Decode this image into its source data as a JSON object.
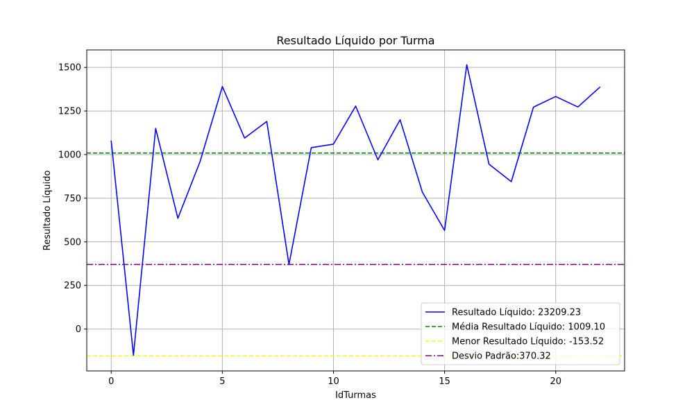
{
  "chart_data": {
    "type": "line",
    "title": "Resultado Líquido por Turma",
    "xlabel": "IdTurmas",
    "ylabel": "Resultado Líquido",
    "xlim": [
      -1.1,
      23.1
    ],
    "ylim": [
      -240,
      1600
    ],
    "xticks": [
      0,
      5,
      10,
      15,
      20
    ],
    "yticks": [
      0,
      250,
      500,
      750,
      1000,
      1250,
      1500
    ],
    "grid": true,
    "legend_position": "lower-right",
    "series": [
      {
        "name": "Resultado Líquido: 23209.23",
        "color": "#0000ff",
        "style": "solid",
        "x": [
          0,
          1,
          2,
          3,
          4,
          5,
          6,
          7,
          8,
          9,
          10,
          11,
          12,
          13,
          14,
          15,
          16,
          17,
          18,
          19,
          20,
          21,
          22
        ],
        "values": [
          1080,
          -150,
          1150,
          635,
          960,
          1390,
          1095,
          1190,
          370,
          1040,
          1060,
          1278,
          970,
          1200,
          785,
          565,
          1515,
          945,
          845,
          1272,
          1333,
          1273,
          1388
        ]
      }
    ],
    "reference_lines": [
      {
        "name": "Média Resultado Líquido: 1009.10",
        "value": 1009.1,
        "color": "#008000",
        "style": "dashed"
      },
      {
        "name": "Menor Resultado Líquido: -153.52",
        "value": -153.52,
        "color": "#ffff00",
        "style": "dashed"
      },
      {
        "name": "Desvio Padrão:370.32",
        "value": 370.32,
        "color": "#800080",
        "style": "dashdot"
      }
    ]
  }
}
